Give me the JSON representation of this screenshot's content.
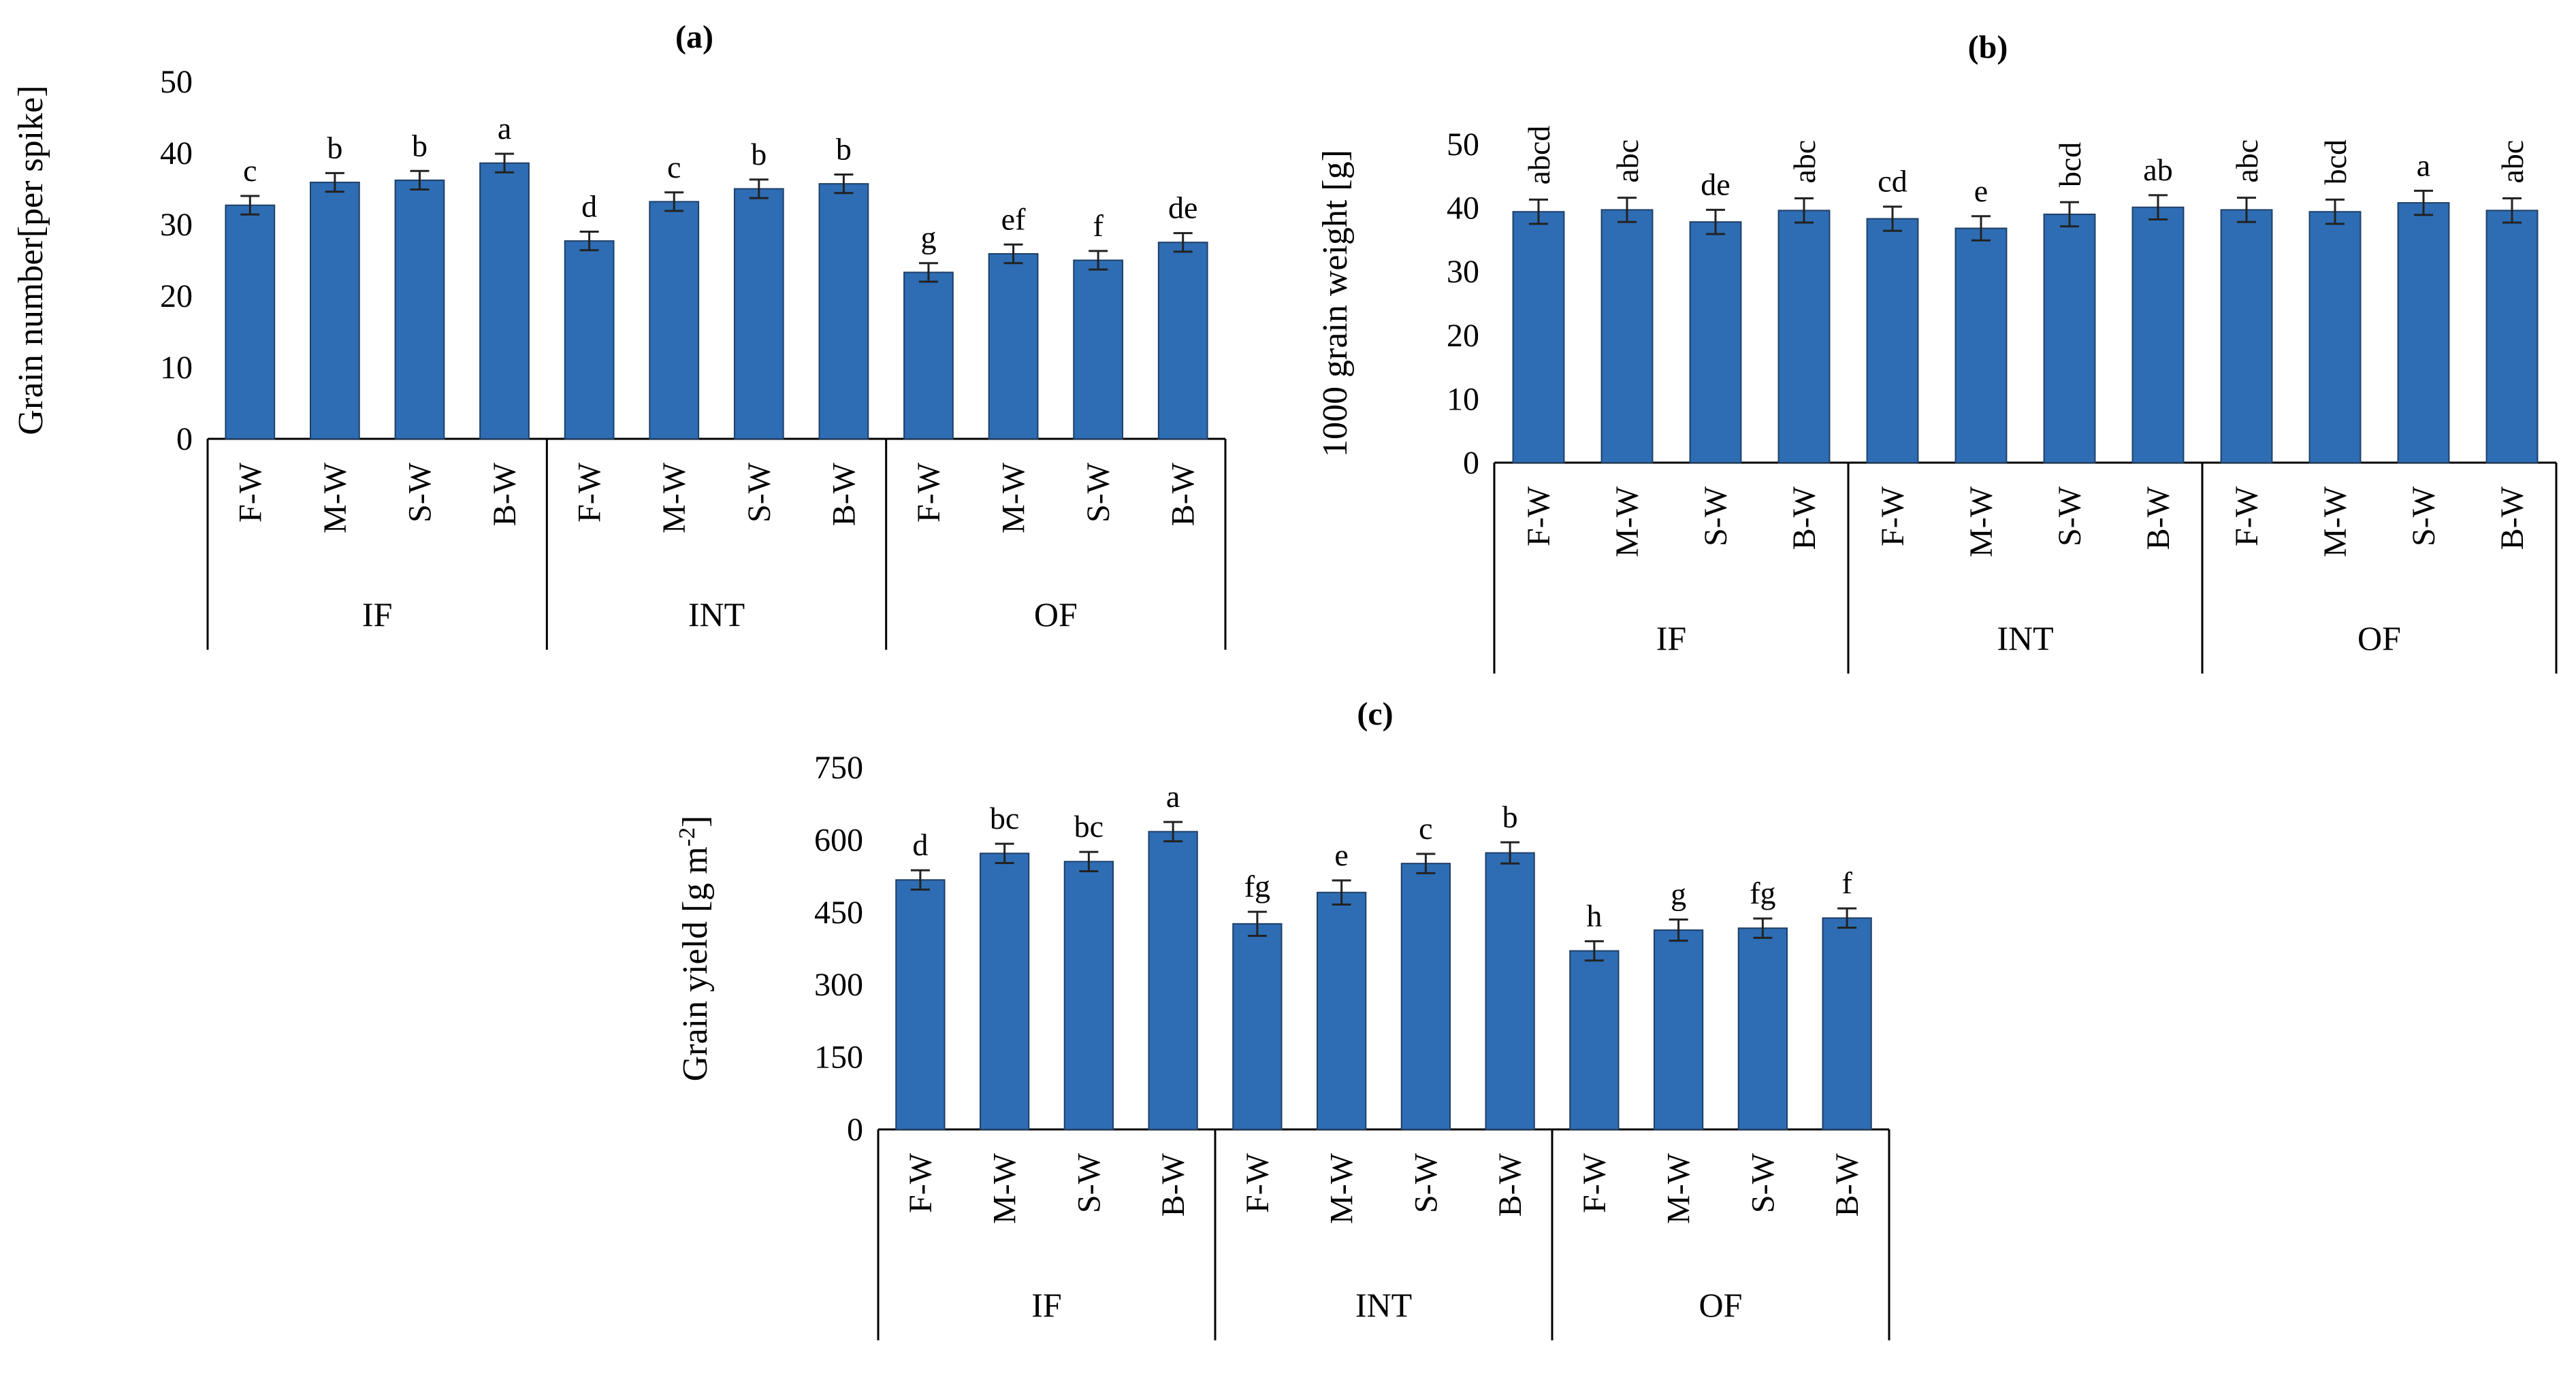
{
  "figure": {
    "bar_color": "#2E6DB4",
    "bar_edge_color": "#1F3F66",
    "axis_color": "#000000"
  },
  "chart_data": [
    {
      "id": "a",
      "type": "bar",
      "title": "(a)",
      "xlabel": "",
      "ylabel": "Grain number[per spike]",
      "ylim": [
        0,
        50
      ],
      "yticks": [
        0,
        10,
        20,
        30,
        40,
        50
      ],
      "groups": [
        {
          "name": "IF",
          "categories": [
            "F-W",
            "M-W",
            "S-W",
            "B-W"
          ],
          "values": [
            32.7,
            35.9,
            36.2,
            38.6
          ],
          "errors": [
            1.3,
            1.3,
            1.3,
            1.3
          ],
          "letters": [
            "c",
            "b",
            "b",
            "a"
          ]
        },
        {
          "name": "INT",
          "categories": [
            "F-W",
            "M-W",
            "S-W",
            "B-W"
          ],
          "values": [
            27.7,
            33.2,
            35.0,
            35.7
          ],
          "errors": [
            1.3,
            1.3,
            1.3,
            1.3
          ],
          "letters": [
            "d",
            "c",
            "b",
            "b"
          ]
        },
        {
          "name": "OF",
          "categories": [
            "F-W",
            "M-W",
            "S-W",
            "B-W"
          ],
          "values": [
            23.3,
            25.9,
            25.0,
            27.5
          ],
          "errors": [
            1.3,
            1.3,
            1.3,
            1.3
          ],
          "letters": [
            "g",
            "ef",
            "f",
            "de"
          ]
        }
      ]
    },
    {
      "id": "b",
      "type": "bar",
      "title": "(b)",
      "xlabel": "",
      "ylabel": "1000 grain weight [g]",
      "ylim": [
        0,
        50
      ],
      "yticks": [
        0,
        10,
        20,
        30,
        40,
        50
      ],
      "groups": [
        {
          "name": "IF",
          "categories": [
            "F-W",
            "M-W",
            "S-W",
            "B-W"
          ],
          "values": [
            39.4,
            39.7,
            37.8,
            39.6
          ],
          "errors": [
            1.9,
            1.9,
            1.9,
            1.9
          ],
          "letters": [
            "abcd",
            "abc",
            "de",
            "abc"
          ]
        },
        {
          "name": "INT",
          "categories": [
            "F-W",
            "M-W",
            "S-W",
            "B-W"
          ],
          "values": [
            38.3,
            36.8,
            39.0,
            40.1
          ],
          "errors": [
            1.9,
            1.9,
            1.9,
            1.9
          ],
          "letters": [
            "cd",
            "e",
            "bcd",
            "ab"
          ]
        },
        {
          "name": "OF",
          "categories": [
            "F-W",
            "M-W",
            "S-W",
            "B-W"
          ],
          "values": [
            39.7,
            39.4,
            40.8,
            39.6
          ],
          "errors": [
            1.9,
            1.9,
            1.9,
            1.9
          ],
          "letters": [
            "abc",
            "bcd",
            "a",
            "abc"
          ]
        }
      ]
    },
    {
      "id": "c",
      "type": "bar",
      "title": "(c)",
      "xlabel": "",
      "ylabel": "Grain yield [g m",
      "ylabel_sup": "-2",
      "ylabel_close": "]",
      "ylim": [
        0,
        750
      ],
      "yticks": [
        0,
        150,
        300,
        450,
        600,
        750
      ],
      "groups": [
        {
          "name": "IF",
          "categories": [
            "F-W",
            "M-W",
            "S-W",
            "B-W"
          ],
          "values": [
            517,
            572,
            555,
            617
          ],
          "errors": [
            20,
            20,
            20,
            20
          ],
          "letters": [
            "d",
            "bc",
            "bc",
            "a"
          ]
        },
        {
          "name": "INT",
          "categories": [
            "F-W",
            "M-W",
            "S-W",
            "B-W"
          ],
          "values": [
            426,
            491,
            551,
            573
          ],
          "errors": [
            25,
            25,
            20,
            22
          ],
          "letters": [
            "fg",
            "e",
            "c",
            "b"
          ]
        },
        {
          "name": "OF",
          "categories": [
            "F-W",
            "M-W",
            "S-W",
            "B-W"
          ],
          "values": [
            370,
            413,
            417,
            438
          ],
          "errors": [
            20,
            22,
            20,
            20
          ],
          "letters": [
            "h",
            "g",
            "fg",
            "f"
          ]
        }
      ]
    }
  ]
}
